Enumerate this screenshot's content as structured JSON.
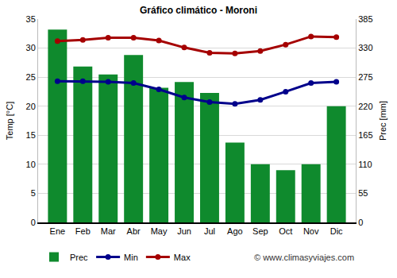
{
  "chart_data": {
    "type": "bar",
    "title": "Gráfico climático - Moroni",
    "y_label": "Temp [°C]",
    "y2_label": "Prec [mm]",
    "annotations": [
      "© www.climasyviajes.com"
    ],
    "categories": [
      "Ene",
      "Feb",
      "Mar",
      "Abr",
      "May",
      "Jun",
      "Jul",
      "Ago",
      "Sep",
      "Oct",
      "Nov",
      "Dic"
    ],
    "series": [
      {
        "name": "Prec",
        "type": "bar",
        "axis": "y2",
        "color": "#0f8a2d",
        "values": [
          365,
          295,
          280,
          317,
          255,
          266,
          245,
          151,
          110,
          99,
          110,
          220
        ]
      },
      {
        "name": "Min",
        "type": "line",
        "color": "#00008b",
        "marker": "circle",
        "values": [
          24.3,
          24.3,
          24.2,
          24.0,
          22.9,
          21.5,
          20.7,
          20.4,
          21.1,
          22.5,
          24.0,
          24.2
        ]
      },
      {
        "name": "Max",
        "type": "line",
        "color": "#a50000",
        "marker": "circle",
        "values": [
          31.2,
          31.4,
          31.8,
          31.8,
          31.3,
          30.1,
          29.2,
          29.1,
          29.5,
          30.6,
          32.0,
          31.9
        ]
      }
    ],
    "ylim": [
      0,
      35
    ],
    "yticks": [
      0,
      5,
      10,
      15,
      20,
      25,
      30,
      35
    ],
    "y2lim": [
      0,
      385
    ],
    "y2ticks": [
      0,
      55,
      110,
      165,
      220,
      275,
      330,
      385
    ],
    "grid": true,
    "legend": "bottom"
  }
}
